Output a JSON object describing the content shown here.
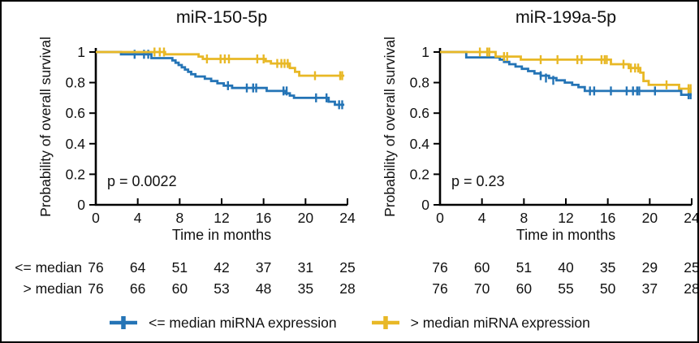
{
  "figure": {
    "background": "#ffffff",
    "border_color": "#000000"
  },
  "colors": {
    "blue": "#2474b6",
    "yellow": "#e8b826",
    "axis": "#000000",
    "text": "#111111"
  },
  "legend": {
    "items": [
      {
        "label": "<= median miRNA expression",
        "color": "blue"
      },
      {
        "label": "> median miRNA expression",
        "color": "yellow"
      }
    ]
  },
  "risk_table": {
    "row_labels": [
      "<= median",
      "> median"
    ],
    "time_points": [
      0,
      4,
      8,
      12,
      16,
      20,
      24
    ],
    "panels": [
      {
        "rows": [
          [
            76,
            64,
            51,
            42,
            37,
            31,
            25
          ],
          [
            76,
            66,
            60,
            53,
            48,
            35,
            28
          ]
        ]
      },
      {
        "rows": [
          [
            76,
            60,
            51,
            40,
            35,
            29,
            25
          ],
          [
            76,
            70,
            60,
            55,
            50,
            37,
            28
          ]
        ]
      }
    ]
  },
  "chart_data": [
    {
      "type": "line",
      "subtype": "kaplan-meier-step",
      "title": "miR-150-5p",
      "xlabel": "Time in months",
      "ylabel": "Probability of overall survival",
      "p_value_label": "p = 0.0022",
      "xlim": [
        0,
        24
      ],
      "ylim": [
        0,
        1
      ],
      "xticks": [
        0,
        4,
        8,
        12,
        16,
        20,
        24
      ],
      "yticks": [
        0,
        0.2,
        0.4,
        0.6,
        0.8,
        1
      ],
      "grid": false,
      "series": [
        {
          "name": "<= median miRNA expression",
          "color": "blue",
          "end": 23.7,
          "points": [
            [
              0,
              1
            ],
            [
              2.4,
              0.985
            ],
            [
              5.3,
              0.96
            ],
            [
              7.3,
              0.945
            ],
            [
              7.6,
              0.93
            ],
            [
              7.9,
              0.915
            ],
            [
              8.2,
              0.9
            ],
            [
              8.5,
              0.885
            ],
            [
              8.8,
              0.87
            ],
            [
              9.1,
              0.855
            ],
            [
              9.5,
              0.84
            ],
            [
              10.4,
              0.825
            ],
            [
              11.0,
              0.81
            ],
            [
              11.6,
              0.795
            ],
            [
              12.2,
              0.78
            ],
            [
              13.0,
              0.765
            ],
            [
              16.3,
              0.745
            ],
            [
              18.1,
              0.73
            ],
            [
              18.5,
              0.715
            ],
            [
              18.9,
              0.7
            ],
            [
              22.2,
              0.675
            ],
            [
              22.8,
              0.655
            ]
          ],
          "censors": [
            [
              3.7,
              0.985
            ],
            [
              4.6,
              0.985
            ],
            [
              5.0,
              0.985
            ],
            [
              12.6,
              0.78
            ],
            [
              14.4,
              0.765
            ],
            [
              15.0,
              0.765
            ],
            [
              15.3,
              0.765
            ],
            [
              17.9,
              0.745
            ],
            [
              18.2,
              0.745
            ],
            [
              21.0,
              0.7
            ],
            [
              22.0,
              0.7
            ],
            [
              23.2,
              0.655
            ],
            [
              23.5,
              0.655
            ]
          ]
        },
        {
          "name": "> median miRNA expression",
          "color": "yellow",
          "end": 23.7,
          "points": [
            [
              0,
              1
            ],
            [
              6.6,
              0.985
            ],
            [
              9.8,
              0.97
            ],
            [
              10.2,
              0.955
            ],
            [
              16.2,
              0.94
            ],
            [
              16.7,
              0.925
            ],
            [
              18.5,
              0.895
            ],
            [
              19.0,
              0.87
            ],
            [
              19.4,
              0.845
            ]
          ],
          "censors": [
            [
              5.6,
              1
            ],
            [
              6.1,
              1
            ],
            [
              6.5,
              1
            ],
            [
              10.6,
              0.955
            ],
            [
              11.9,
              0.955
            ],
            [
              12.3,
              0.955
            ],
            [
              12.7,
              0.955
            ],
            [
              15.4,
              0.955
            ],
            [
              16.0,
              0.955
            ],
            [
              17.3,
              0.925
            ],
            [
              17.7,
              0.925
            ],
            [
              18.0,
              0.925
            ],
            [
              18.3,
              0.925
            ],
            [
              20.9,
              0.845
            ],
            [
              23.3,
              0.845
            ],
            [
              23.5,
              0.845
            ]
          ]
        }
      ]
    },
    {
      "type": "line",
      "subtype": "kaplan-meier-step",
      "title": "miR-199a-5p",
      "xlabel": "Time in months",
      "ylabel": "Probability of overall survival",
      "p_value_label": "p = 0.23",
      "xlim": [
        0,
        24
      ],
      "ylim": [
        0,
        1
      ],
      "xticks": [
        0,
        4,
        8,
        12,
        16,
        20,
        24
      ],
      "yticks": [
        0,
        0.2,
        0.4,
        0.6,
        0.8,
        1
      ],
      "grid": false,
      "series": [
        {
          "name": "<= median miRNA expression",
          "color": "blue",
          "end": 24,
          "points": [
            [
              0,
              1
            ],
            [
              2.5,
              0.965
            ],
            [
              5.7,
              0.95
            ],
            [
              6.1,
              0.935
            ],
            [
              6.6,
              0.92
            ],
            [
              7.2,
              0.905
            ],
            [
              7.8,
              0.89
            ],
            [
              8.4,
              0.875
            ],
            [
              9.0,
              0.86
            ],
            [
              9.6,
              0.845
            ],
            [
              10.4,
              0.83
            ],
            [
              11.1,
              0.815
            ],
            [
              11.9,
              0.8
            ],
            [
              12.6,
              0.785
            ],
            [
              13.2,
              0.77
            ],
            [
              13.8,
              0.745
            ],
            [
              23.0,
              0.72
            ]
          ],
          "censors": [
            [
              9.6,
              0.845
            ],
            [
              10.1,
              0.83
            ],
            [
              10.8,
              0.815
            ],
            [
              14.3,
              0.745
            ],
            [
              14.7,
              0.745
            ],
            [
              16.3,
              0.745
            ],
            [
              17.8,
              0.745
            ],
            [
              18.4,
              0.745
            ],
            [
              18.8,
              0.745
            ],
            [
              19.0,
              0.745
            ],
            [
              20.5,
              0.745
            ],
            [
              23.7,
              0.72
            ],
            [
              23.9,
              0.72
            ]
          ]
        },
        {
          "name": "> median miRNA expression",
          "color": "yellow",
          "end": 24,
          "points": [
            [
              0,
              1
            ],
            [
              5.3,
              0.97
            ],
            [
              7.7,
              0.95
            ],
            [
              16.3,
              0.92
            ],
            [
              18.0,
              0.895
            ],
            [
              19.1,
              0.865
            ],
            [
              19.4,
              0.81
            ],
            [
              19.9,
              0.785
            ],
            [
              22.8,
              0.76
            ]
          ],
          "censors": [
            [
              3.8,
              1
            ],
            [
              4.5,
              1
            ],
            [
              4.7,
              1
            ],
            [
              6.1,
              0.97
            ],
            [
              6.4,
              0.97
            ],
            [
              9.6,
              0.95
            ],
            [
              11.2,
              0.95
            ],
            [
              13.1,
              0.95
            ],
            [
              13.5,
              0.95
            ],
            [
              15.4,
              0.95
            ],
            [
              15.7,
              0.95
            ],
            [
              15.9,
              0.95
            ],
            [
              17.5,
              0.92
            ],
            [
              18.2,
              0.895
            ],
            [
              18.6,
              0.895
            ],
            [
              18.9,
              0.895
            ],
            [
              21.6,
              0.785
            ],
            [
              23.7,
              0.76
            ],
            [
              23.9,
              0.76
            ]
          ]
        }
      ]
    }
  ]
}
